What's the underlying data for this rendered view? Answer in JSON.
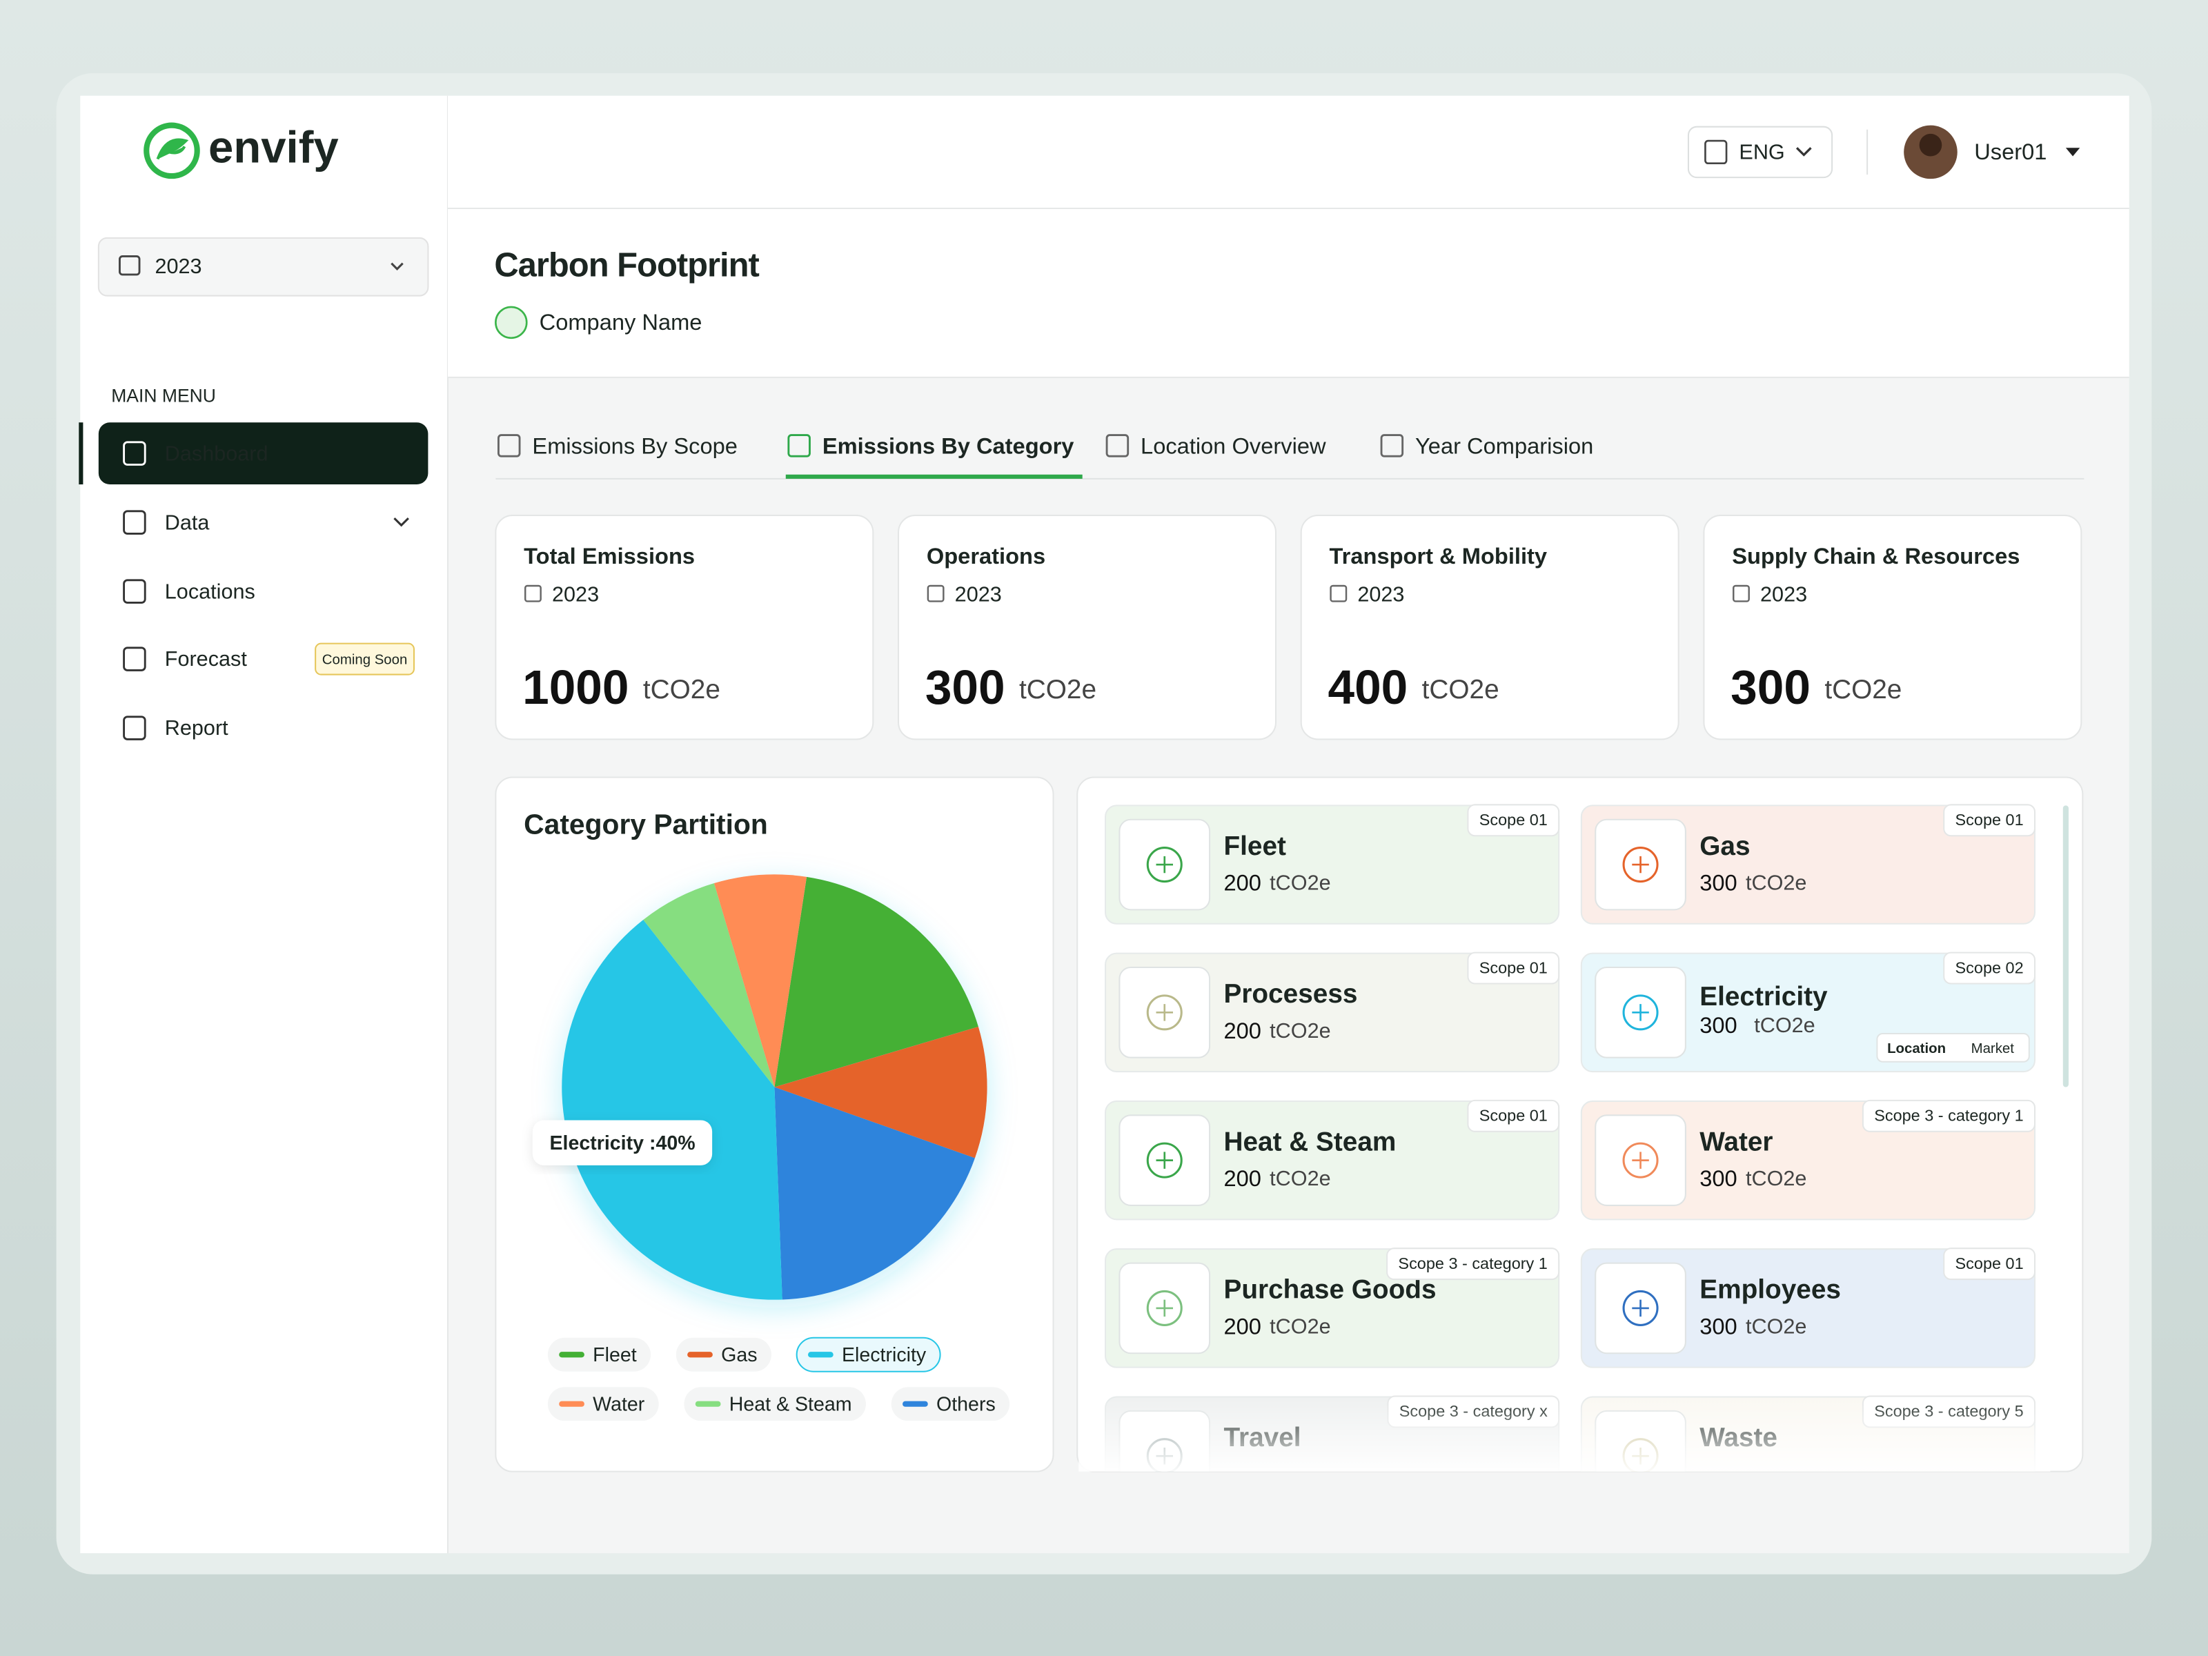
{
  "brand": "envify",
  "year_select": "2023",
  "menu": {
    "heading": "MAIN MENU",
    "items": [
      {
        "label": "Dashboard"
      },
      {
        "label": "Data"
      },
      {
        "label": "Locations"
      },
      {
        "label": "Forecast",
        "badge": "Coming Soon"
      },
      {
        "label": "Report"
      }
    ]
  },
  "header": {
    "language": "ENG",
    "user": "User01"
  },
  "page": {
    "title": "Carbon Footprint",
    "company": "Company Name"
  },
  "tabs": [
    "Emissions By Scope",
    "Emissions By Category",
    "Location Overview",
    "Year Comparision"
  ],
  "summary_cards": [
    {
      "title": "Total Emissions",
      "year": "2023",
      "value": 1000,
      "unit": "tCO2e"
    },
    {
      "title": "Operations",
      "year": "2023",
      "value": 300,
      "unit": "tCO2e"
    },
    {
      "title": "Transport & Mobility",
      "year": "2023",
      "value": 400,
      "unit": "tCO2e"
    },
    {
      "title": "Supply Chain & Resources",
      "year": "2023",
      "value": 300,
      "unit": "tCO2e"
    }
  ],
  "chart_data": {
    "type": "pie",
    "title": "Category Partition",
    "categories": [
      "Fleet",
      "Gas",
      "Others",
      "Electricity",
      "Heat & Steam",
      "Water"
    ],
    "values": [
      18,
      10,
      19,
      40,
      6,
      7
    ],
    "colors": [
      "#44b035",
      "#e5632a",
      "#2f84dc",
      "#26c6e6",
      "#86de80",
      "#ff8c55"
    ],
    "value_labels": [
      null,
      null,
      null,
      "Electricity :40%",
      null,
      null
    ]
  },
  "category_cards": [
    {
      "name": "Fleet",
      "value": 200,
      "unit": "tCO2e",
      "scope": "Scope 01",
      "color": "#edf6ec",
      "accent": "#3aa64a"
    },
    {
      "name": "Gas",
      "value": 300,
      "unit": "tCO2e",
      "scope": "Scope 01",
      "color": "#fbede8",
      "accent": "#e5632a"
    },
    {
      "name": "Procesess",
      "value": 200,
      "unit": "tCO2e",
      "scope": "Scope 01",
      "color": "#f3f5ef",
      "accent": "#b9b98a"
    },
    {
      "name": "Electricity",
      "value": 300,
      "unit": "tCO2e",
      "scope": "Scope 02",
      "color": "#e8f7fb",
      "accent": "#1fb4dc",
      "toggle": [
        "Location",
        "Market"
      ]
    },
    {
      "name": "Heat & Steam",
      "value": 200,
      "unit": "tCO2e",
      "scope": "Scope 01",
      "color": "#edf6ec",
      "accent": "#3aa64a"
    },
    {
      "name": "Water",
      "value": 300,
      "unit": "tCO2e",
      "scope": "Scope 3 - category 1",
      "color": "#fcefe8",
      "accent": "#f08a5a"
    },
    {
      "name": "Purchase Goods",
      "value": 200,
      "unit": "tCO2e",
      "scope": "Scope 3 - category 1",
      "color": "#edf6ec",
      "accent": "#7cc07f"
    },
    {
      "name": "Employees",
      "value": 300,
      "unit": "tCO2e",
      "scope": "Scope 01",
      "color": "#e6eef8",
      "accent": "#2f6fc0"
    },
    {
      "name": "Travel",
      "scope": "Scope 3 - category x",
      "color": "#eef0f0",
      "accent": "#8a9a9a"
    },
    {
      "name": "Waste",
      "scope": "Scope 3 - category 5",
      "color": "#faf8f2",
      "accent": "#c8c090"
    }
  ]
}
